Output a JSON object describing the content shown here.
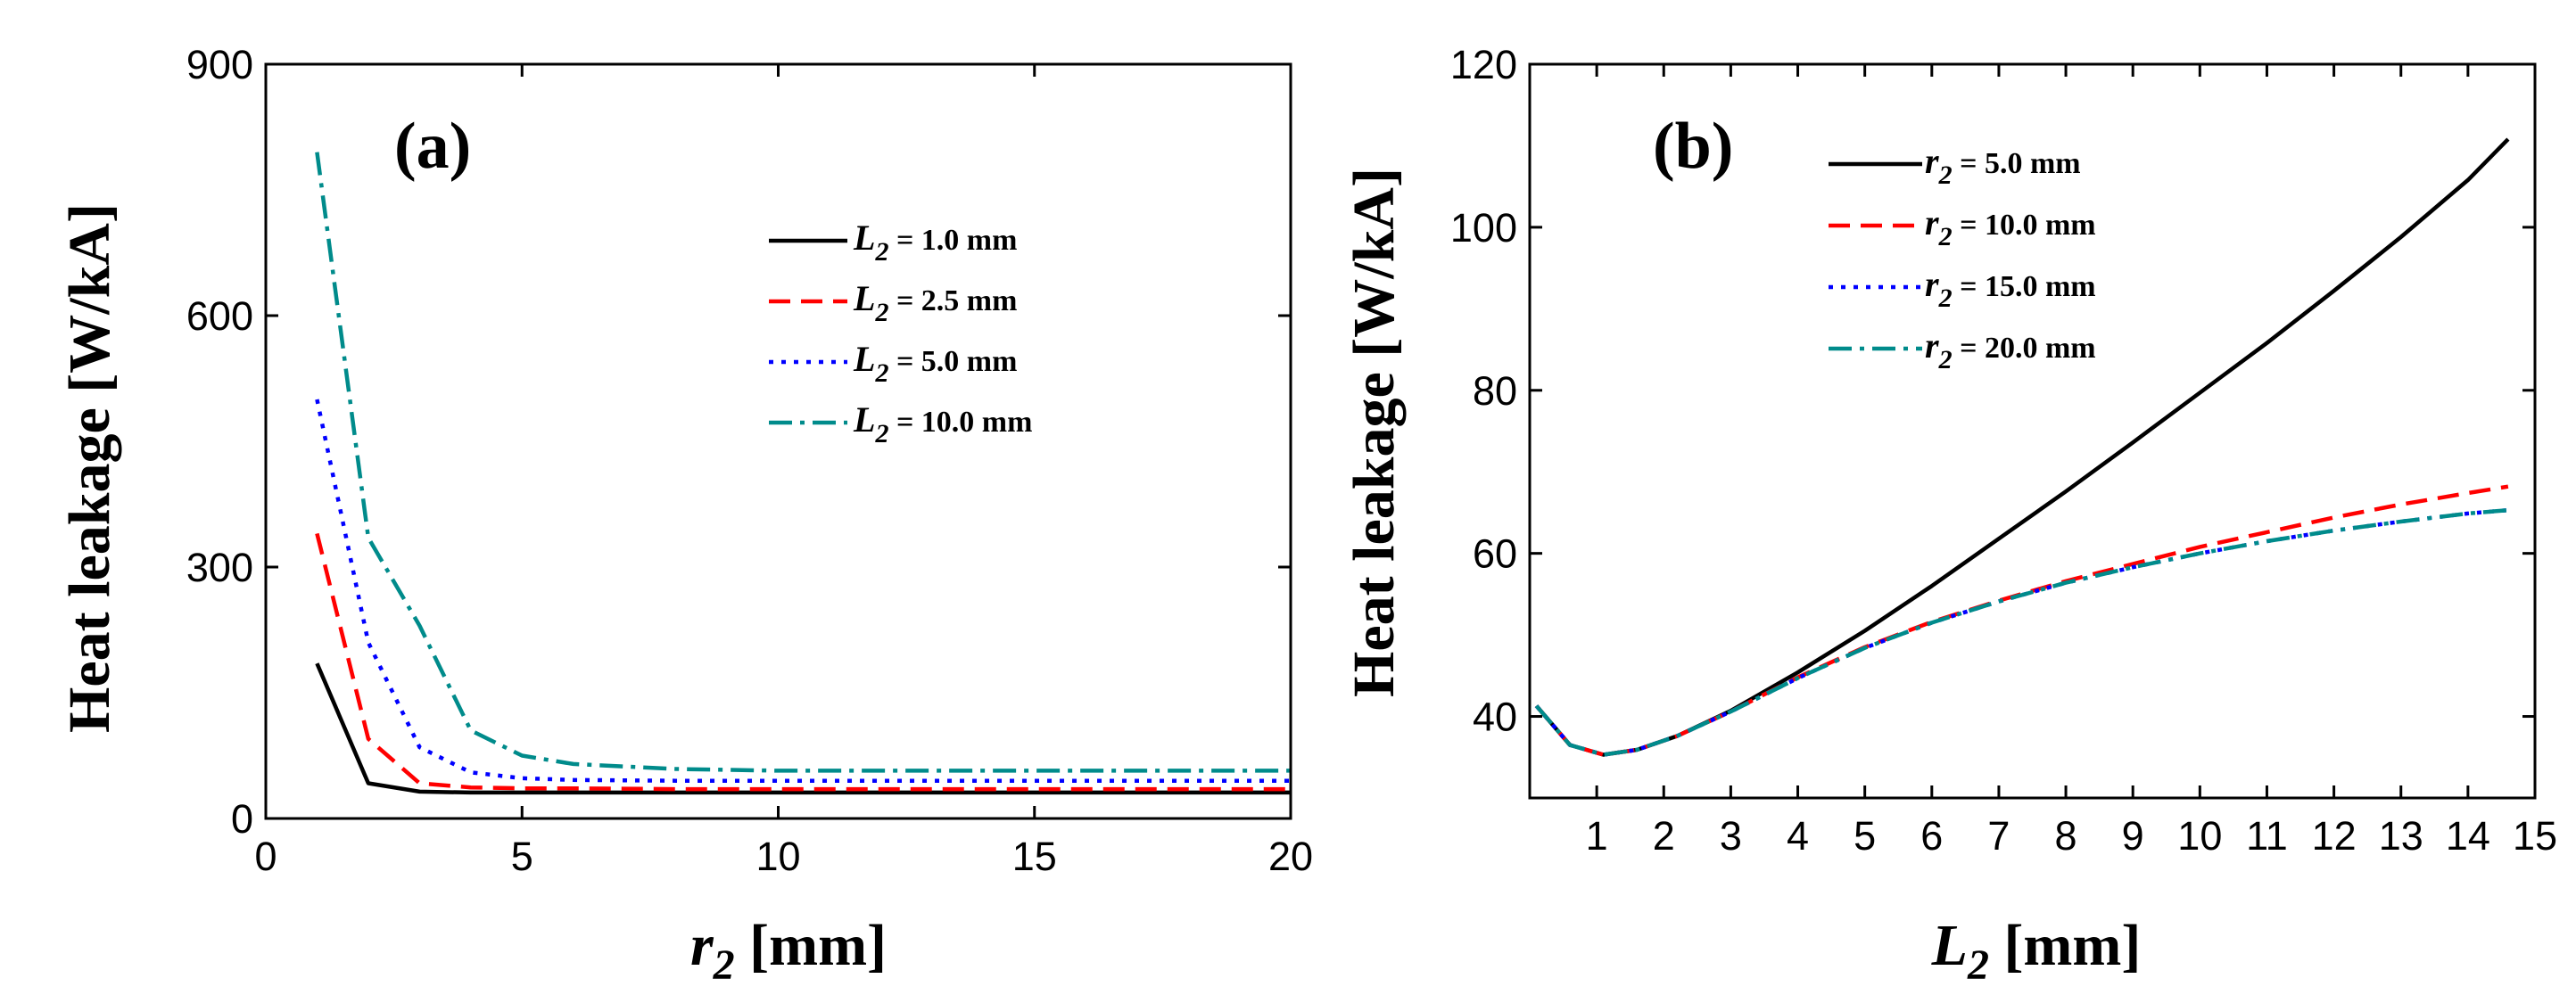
{
  "chart_data": [
    {
      "type": "line",
      "panel_label": "(a)",
      "xlabel_symbol": "r",
      "xlabel_sub": "2",
      "xlabel_unit": " [mm]",
      "ylabel": "Heat leakage  [W/kA]",
      "xlim": [
        0,
        20
      ],
      "ylim": [
        0,
        900
      ],
      "xticks": [
        0,
        5,
        10,
        15,
        20
      ],
      "xtick_labels": [
        "0",
        "5",
        "10",
        "15",
        "20"
      ],
      "yticks": [
        0,
        300,
        600,
        900
      ],
      "ytick_labels": [
        "0",
        "300",
        "600",
        "900"
      ],
      "legend_position": "top-right",
      "series": [
        {
          "name_symbol": "L",
          "name_sub": "2",
          "name_value": " = 1.0 mm",
          "color": "#000000",
          "dash": "solid",
          "x": [
            1,
            2,
            3,
            4,
            5,
            6,
            8,
            10,
            12,
            15,
            18,
            20
          ],
          "y": [
            185,
            42,
            32,
            31,
            31,
            31,
            31,
            31,
            31,
            31,
            31,
            31
          ]
        },
        {
          "name_symbol": "L",
          "name_sub": "2",
          "name_value": " = 2.5 mm",
          "color": "#ff0000",
          "dash": "dashed",
          "x": [
            1,
            2,
            3,
            4,
            5,
            6,
            8,
            10,
            12,
            15,
            18,
            20
          ],
          "y": [
            340,
            95,
            42,
            37,
            36,
            36,
            35,
            35,
            35,
            35,
            35,
            35
          ]
        },
        {
          "name_symbol": "L",
          "name_sub": "2",
          "name_value": " = 5.0 mm",
          "color": "#0000ff",
          "dash": "dotted",
          "x": [
            1,
            2,
            3,
            4,
            5,
            6,
            8,
            10,
            12,
            15,
            18,
            20
          ],
          "y": [
            500,
            210,
            85,
            55,
            48,
            46,
            45,
            45,
            45,
            45,
            45,
            45
          ]
        },
        {
          "name_symbol": "L",
          "name_sub": "2",
          "name_value": " = 10.0 mm",
          "color": "#008b8b",
          "dash": "dashdot",
          "x": [
            1,
            2,
            3,
            4,
            5,
            6,
            8,
            10,
            12,
            15,
            18,
            20
          ],
          "y": [
            795,
            335,
            230,
            105,
            75,
            65,
            59,
            57,
            57,
            57,
            57,
            57
          ]
        }
      ]
    },
    {
      "type": "line",
      "panel_label": "(b)",
      "xlabel_symbol": "L",
      "xlabel_sub": "2",
      "xlabel_unit": " [mm]",
      "ylabel": "Heat leakage  [W/kA]",
      "xlim": [
        0,
        15
      ],
      "ylim": [
        30,
        120
      ],
      "xticks": [
        1,
        2,
        3,
        4,
        5,
        6,
        7,
        8,
        9,
        10,
        11,
        12,
        13,
        14,
        15
      ],
      "xtick_labels": [
        "1",
        "2",
        "3",
        "4",
        "5",
        "6",
        "7",
        "8",
        "9",
        "10",
        "11",
        "12",
        "13",
        "14",
        "15"
      ],
      "yticks": [
        40,
        60,
        80,
        100,
        120
      ],
      "ytick_labels": [
        "40",
        "60",
        "80",
        "100",
        "120"
      ],
      "legend_position": "top-left",
      "series": [
        {
          "name_symbol": "r",
          "name_sub": "2",
          "name_value": " = 5.0 mm",
          "color": "#000000",
          "dash": "solid",
          "x": [
            0.1,
            0.6,
            1.1,
            1.6,
            2.2,
            3,
            4,
            5,
            6,
            7,
            8,
            9,
            10,
            11,
            12,
            13,
            14,
            14.6
          ],
          "y": [
            41.3,
            36.5,
            35.3,
            35.9,
            37.6,
            40.7,
            45.4,
            50.5,
            56.0,
            61.8,
            67.6,
            73.6,
            79.7,
            85.8,
            92.2,
            98.8,
            105.8,
            110.8
          ]
        },
        {
          "name_symbol": "r",
          "name_sub": "2",
          "name_value": " = 10.0 mm",
          "color": "#ff0000",
          "dash": "dashed",
          "x": [
            0.1,
            0.6,
            1.1,
            1.6,
            2.2,
            3,
            4,
            5,
            6,
            7,
            8,
            9,
            10,
            11,
            12,
            13,
            14,
            14.6
          ],
          "y": [
            41.3,
            36.5,
            35.3,
            35.9,
            37.6,
            40.6,
            44.8,
            48.5,
            51.6,
            54.2,
            56.6,
            58.7,
            60.8,
            62.6,
            64.4,
            66.0,
            67.4,
            68.2
          ]
        },
        {
          "name_symbol": "r",
          "name_sub": "2",
          "name_value": " = 15.0 mm",
          "color": "#0000ff",
          "dash": "dotted",
          "x": [
            0.1,
            0.6,
            1.1,
            1.6,
            2.2,
            3,
            4,
            5,
            6,
            7,
            8,
            9,
            10,
            11,
            12,
            13,
            14,
            14.6
          ],
          "y": [
            41.3,
            36.5,
            35.3,
            35.9,
            37.6,
            40.6,
            44.7,
            48.4,
            51.5,
            54.1,
            56.4,
            58.3,
            60.0,
            61.5,
            62.8,
            63.9,
            64.9,
            65.3
          ]
        },
        {
          "name_symbol": "r",
          "name_sub": "2",
          "name_value": " = 20.0 mm",
          "color": "#008b8b",
          "dash": "dashdot",
          "x": [
            0.1,
            0.6,
            1.1,
            1.6,
            2.2,
            3,
            4,
            5,
            6,
            7,
            8,
            9,
            10,
            11,
            12,
            13,
            14,
            14.6
          ],
          "y": [
            41.3,
            36.5,
            35.3,
            35.9,
            37.6,
            40.6,
            44.7,
            48.4,
            51.5,
            54.1,
            56.4,
            58.3,
            60.0,
            61.5,
            62.8,
            63.9,
            64.9,
            65.3
          ]
        }
      ]
    }
  ]
}
